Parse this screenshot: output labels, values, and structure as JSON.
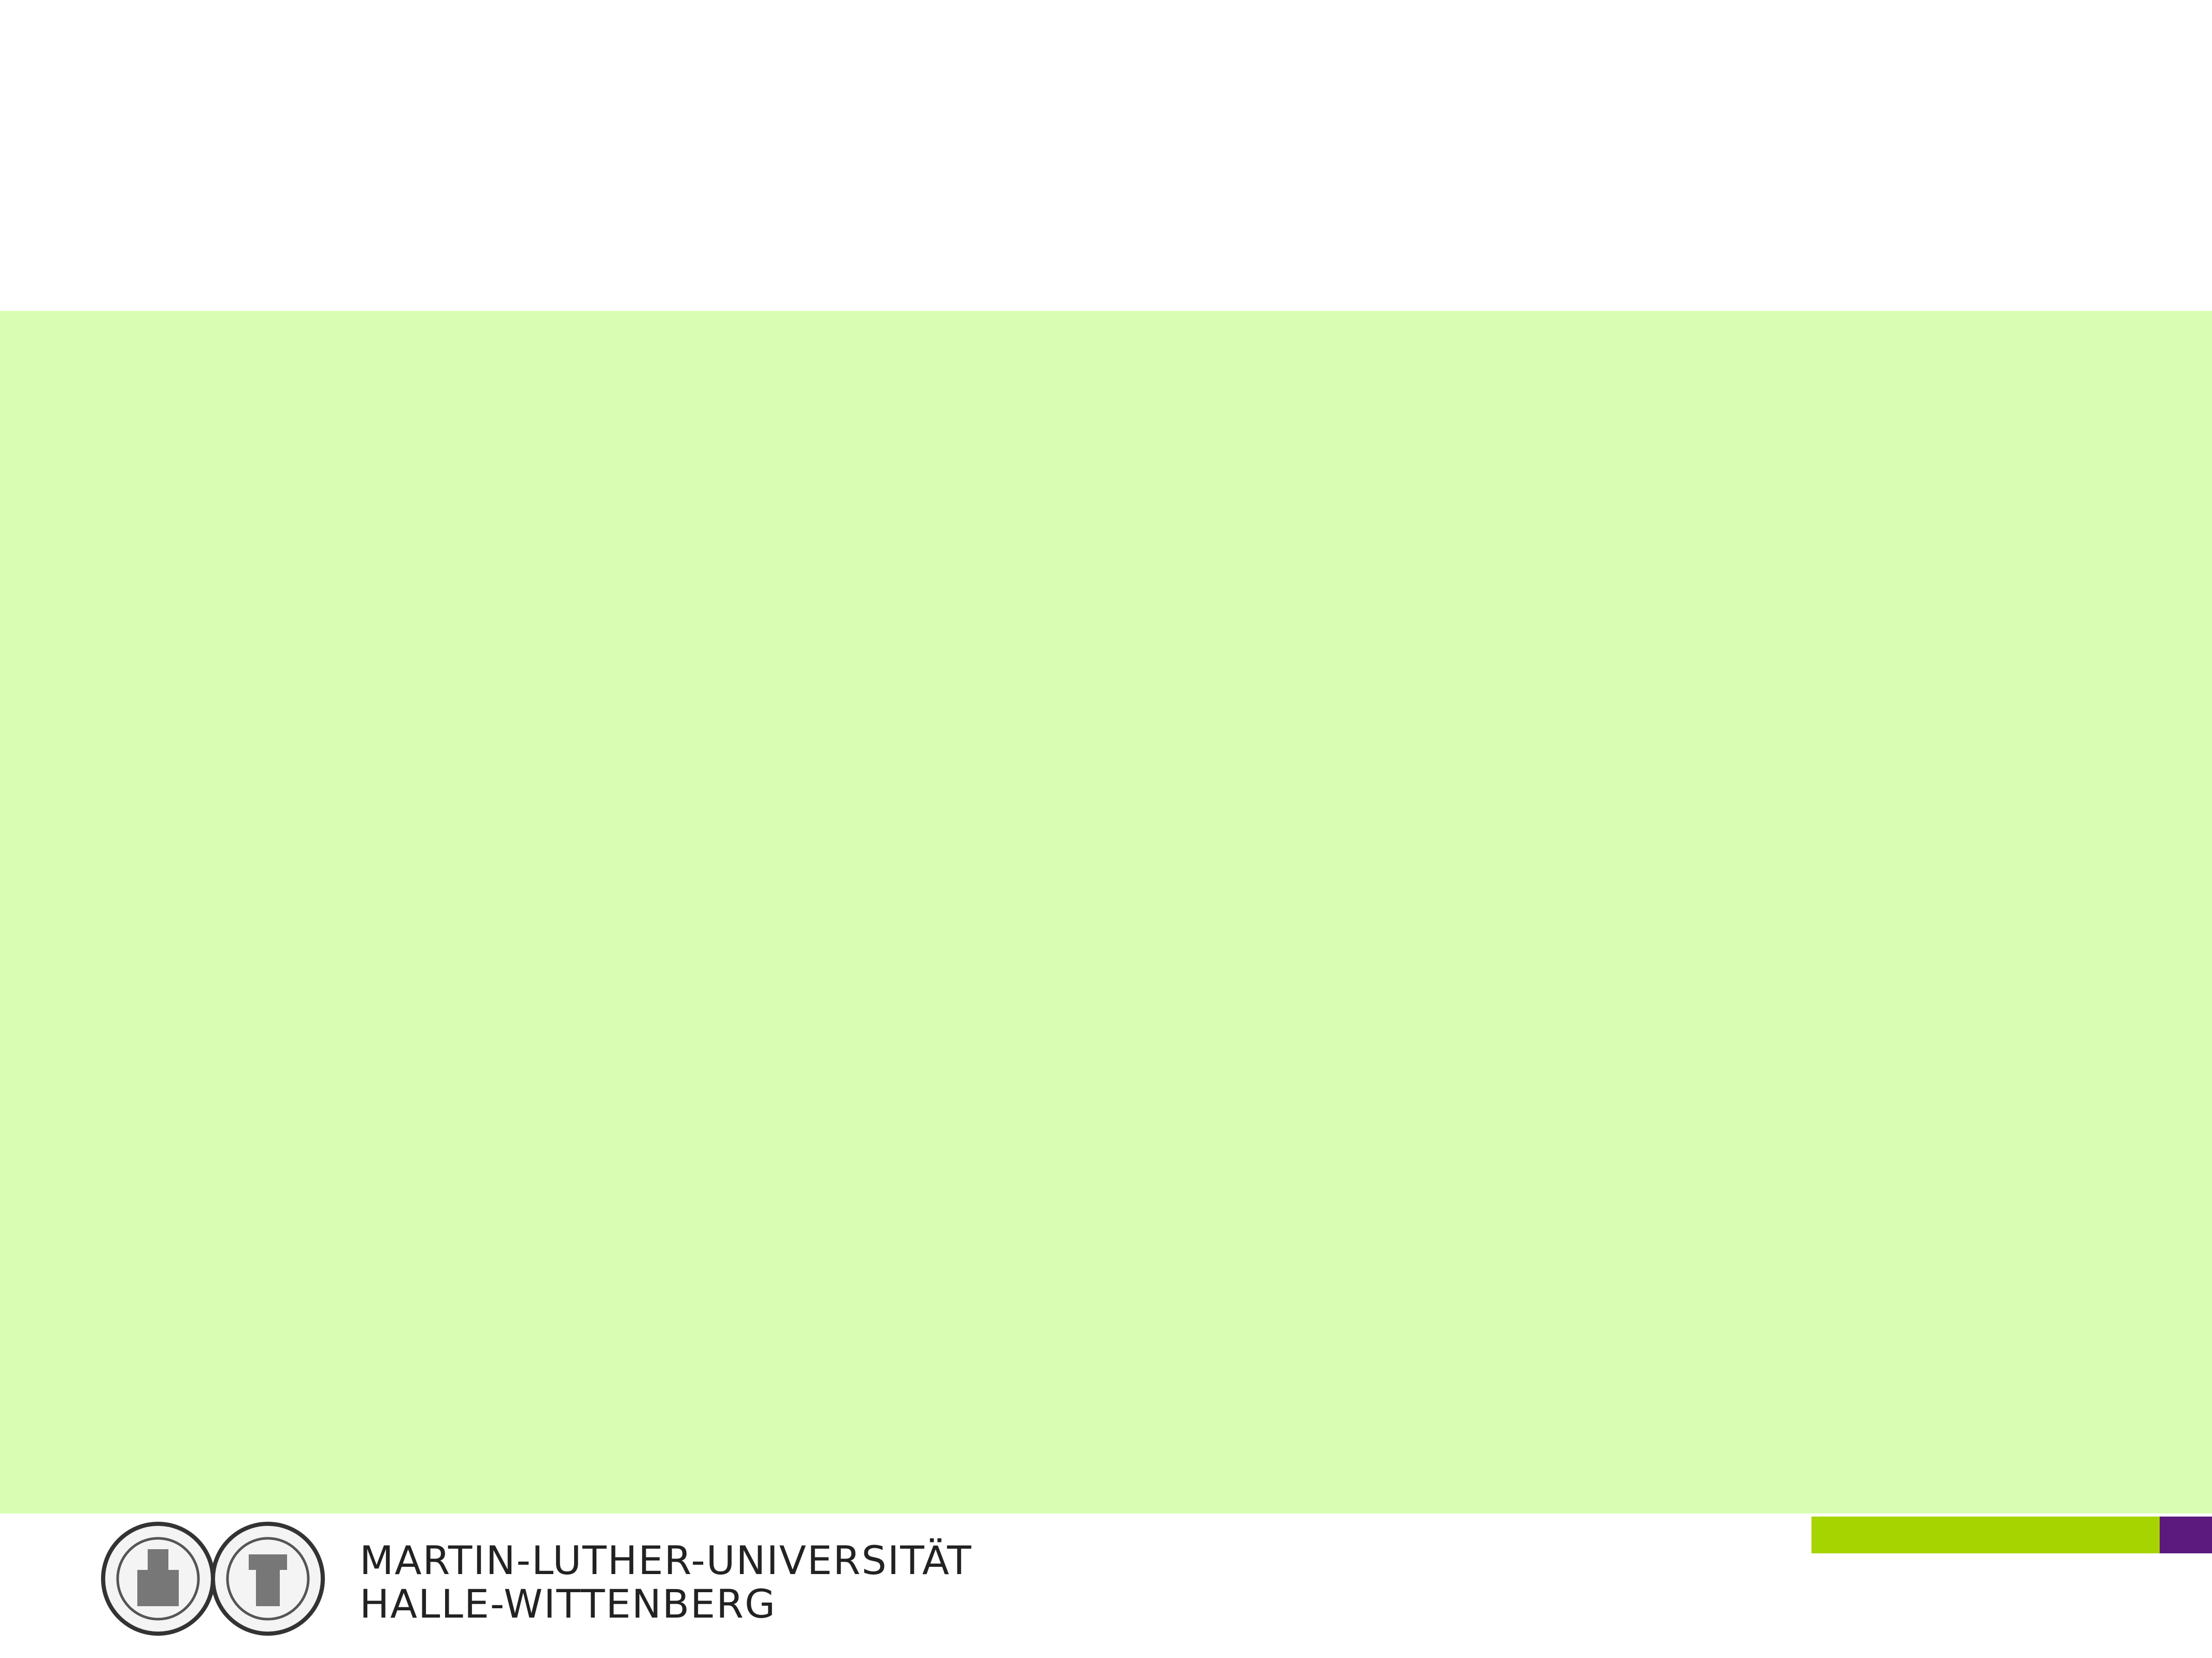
{
  "logo": {
    "line1": "MARTIN-LUTHER-UNIVERSITÄT",
    "line2": "HALLE-WITTENBERG"
  }
}
